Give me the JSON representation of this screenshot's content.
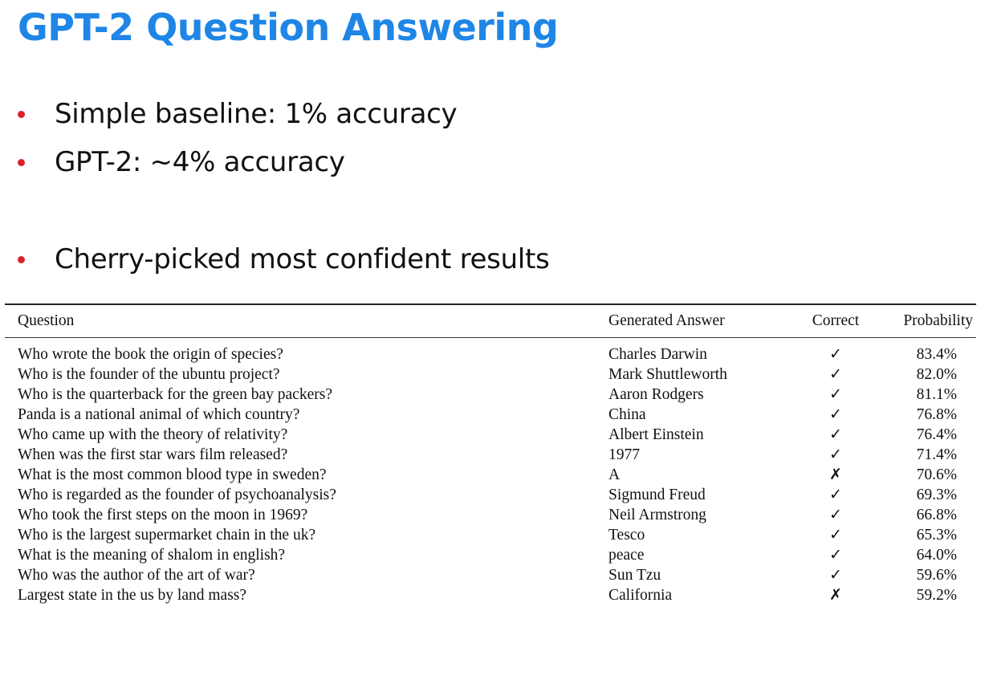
{
  "slide": {
    "title": "GPT-2 Question Answering",
    "bullets": [
      "Simple baseline: 1% accuracy",
      "GPT-2: ~4% accuracy",
      "Cherry-picked most confident results"
    ],
    "colors": {
      "title": "#1f86e6",
      "bullet": "#d9232e"
    }
  },
  "table": {
    "headers": {
      "question": "Question",
      "answer": "Generated Answer",
      "correct": "Correct",
      "probability": "Probability"
    },
    "rows": [
      {
        "question": "Who wrote the book the origin of species?",
        "answer": "Charles Darwin",
        "correct": "✓",
        "probability": "83.4%"
      },
      {
        "question": "Who is the founder of the ubuntu project?",
        "answer": "Mark Shuttleworth",
        "correct": "✓",
        "probability": "82.0%"
      },
      {
        "question": "Who is the quarterback for the green bay packers?",
        "answer": "Aaron Rodgers",
        "correct": "✓",
        "probability": "81.1%"
      },
      {
        "question": "Panda is a national animal of which country?",
        "answer": "China",
        "correct": "✓",
        "probability": "76.8%"
      },
      {
        "question": "Who came up with the theory of relativity?",
        "answer": "Albert Einstein",
        "correct": "✓",
        "probability": "76.4%"
      },
      {
        "question": "When was the first star wars film released?",
        "answer": "1977",
        "correct": "✓",
        "probability": "71.4%"
      },
      {
        "question": "What is the most common blood type in sweden?",
        "answer": "A",
        "correct": "✗",
        "probability": "70.6%"
      },
      {
        "question": "Who is regarded as the founder of psychoanalysis?",
        "answer": "Sigmund Freud",
        "correct": "✓",
        "probability": "69.3%"
      },
      {
        "question": "Who took the first steps on the moon in 1969?",
        "answer": "Neil Armstrong",
        "correct": "✓",
        "probability": "66.8%"
      },
      {
        "question": "Who is the largest supermarket chain in the uk?",
        "answer": "Tesco",
        "correct": "✓",
        "probability": "65.3%"
      },
      {
        "question": "What is the meaning of shalom in english?",
        "answer": "peace",
        "correct": "✓",
        "probability": "64.0%"
      },
      {
        "question": "Who was the author of the art of war?",
        "answer": "Sun Tzu",
        "correct": "✓",
        "probability": "59.6%"
      },
      {
        "question": "Largest state in the us by land mass?",
        "answer": "California",
        "correct": "✗",
        "probability": "59.2%"
      }
    ]
  }
}
